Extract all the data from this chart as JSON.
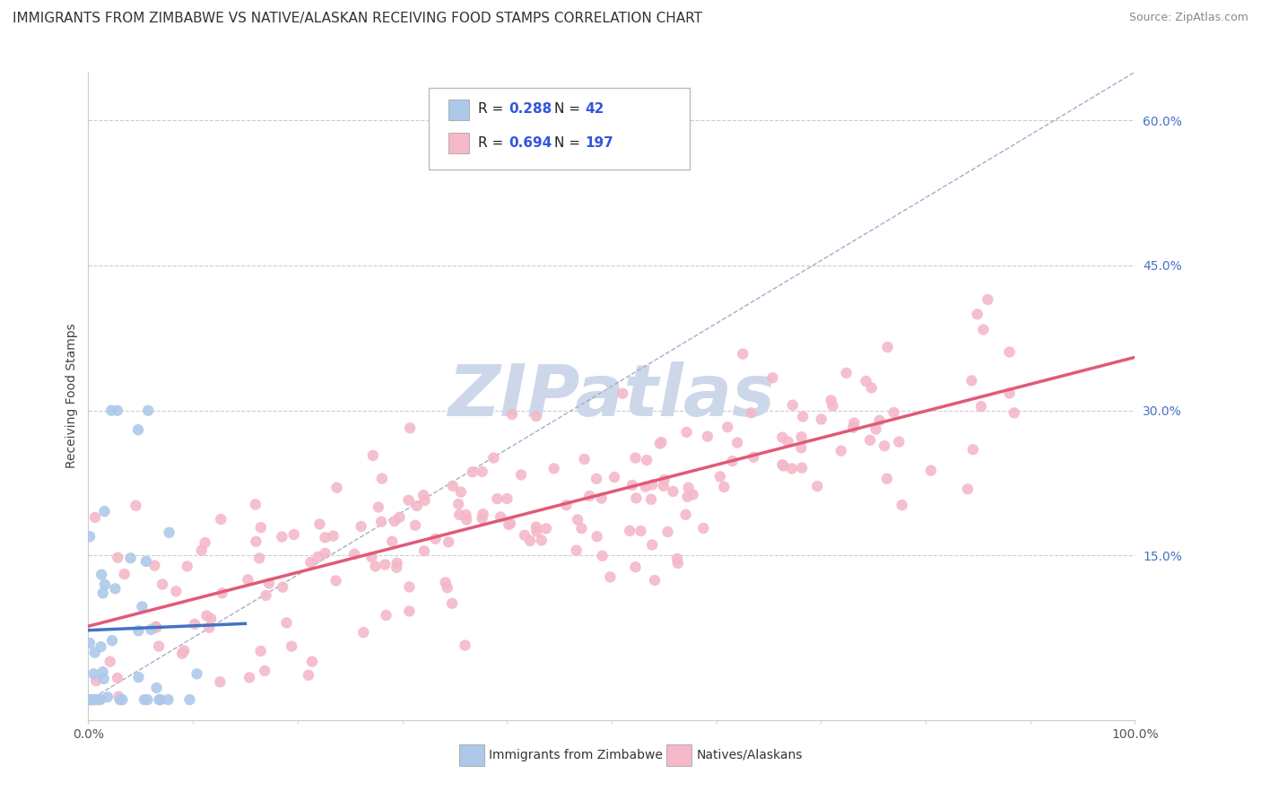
{
  "title": "IMMIGRANTS FROM ZIMBABWE VS NATIVE/ALASKAN RECEIVING FOOD STAMPS CORRELATION CHART",
  "source": "Source: ZipAtlas.com",
  "ylabel": "Receiving Food Stamps",
  "xlim": [
    0.0,
    1.0
  ],
  "ylim": [
    -0.02,
    0.65
  ],
  "yticks": [
    0.0,
    0.15,
    0.3,
    0.45,
    0.6
  ],
  "ytick_labels": [
    "",
    "15.0%",
    "30.0%",
    "45.0%",
    "60.0%"
  ],
  "xtick_labels": [
    "0.0%",
    "100.0%"
  ],
  "series1_label": "Immigrants from Zimbabwe",
  "series1_color": "#adc9ea",
  "series1_line_color": "#4472c4",
  "series1_R": 0.288,
  "series1_N": 42,
  "series2_label": "Natives/Alaskans",
  "series2_color": "#f4b8c8",
  "series2_line_color": "#e05a78",
  "series2_R": 0.694,
  "series2_N": 197,
  "legend_text_color": "#000000",
  "legend_value_color": "#3355dd",
  "background_color": "#ffffff",
  "grid_color": "#cccccc",
  "ref_line_color": "#aaaacc",
  "watermark_color": "#ccd8ea",
  "title_fontsize": 11,
  "source_fontsize": 9,
  "axis_label_fontsize": 10,
  "tick_fontsize": 10,
  "ytick_color": "#4472c4"
}
